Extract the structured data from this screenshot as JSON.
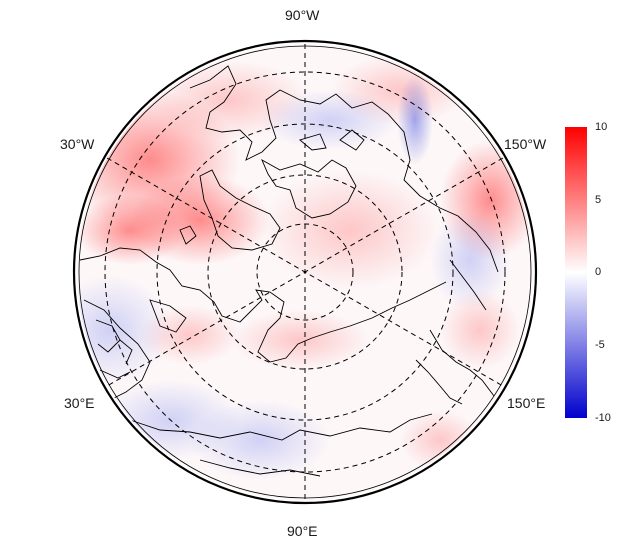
{
  "map": {
    "projection": "north polar stereographic",
    "grid": true,
    "lon_labels": {
      "top": "90°W",
      "upper_left": "30°W",
      "upper_right": "150°W",
      "lower_left": "30°E",
      "lower_right": "150°E",
      "bottom": "90°E"
    }
  },
  "colorbar": {
    "min": -10,
    "max": 10,
    "ticks": [
      "10",
      "5",
      "0",
      "-5",
      "-10"
    ],
    "colors": {
      "high": "#ff0000",
      "mid": "#ffffff",
      "low": "#0000cc"
    }
  }
}
